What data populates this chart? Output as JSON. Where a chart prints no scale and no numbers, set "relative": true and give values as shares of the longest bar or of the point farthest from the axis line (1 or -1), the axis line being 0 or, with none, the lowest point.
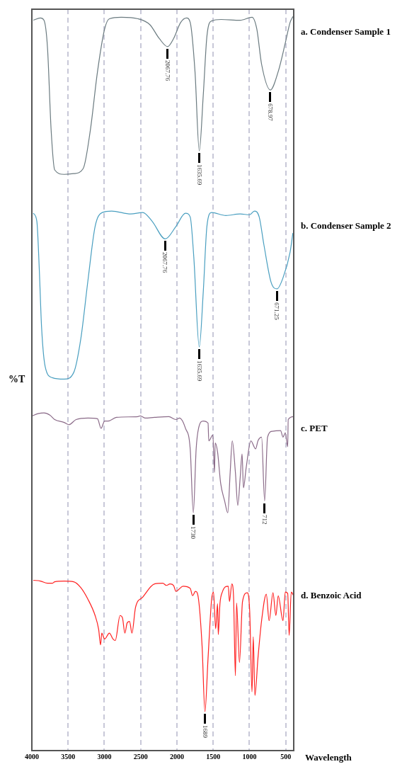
{
  "chart_data": {
    "type": "line",
    "relative": true,
    "xlabel": "Wavelength",
    "ylabel": "%T",
    "xlim": [
      4000,
      390
    ],
    "xticks": [
      4000,
      3500,
      3000,
      2500,
      2000,
      1500,
      1000,
      500
    ],
    "grid": "x",
    "marker": "none",
    "tick_labels": "x",
    "series": [
      {
        "name": "a. Condenser Sample 1",
        "color": "#6b7b80",
        "x": [
          3980,
          3882,
          3833,
          3784,
          3734,
          3685,
          3554,
          3423,
          3292,
          3194,
          3095,
          2997,
          2931,
          2767,
          2538,
          2374,
          2243,
          2128,
          2046,
          1948,
          1866,
          1817,
          1751,
          1692,
          1637,
          1587,
          1522,
          1391,
          1128,
          965,
          899,
          833,
          712,
          604,
          506,
          440,
          401
        ],
        "values": [
          0.995,
          0.998,
          0.995,
          0.957,
          0.845,
          0.791,
          0.785,
          0.786,
          0.793,
          0.845,
          0.925,
          0.983,
          0.997,
          0.999,
          0.997,
          0.989,
          0.97,
          0.959,
          0.97,
          0.992,
          0.998,
          0.992,
          0.925,
          0.817,
          0.893,
          0.973,
          0.994,
          0.996,
          0.995,
          0.999,
          0.983,
          0.935,
          0.9,
          0.925,
          0.964,
          0.992,
          1
        ]
      },
      {
        "name": "b. Condenser Sample 2",
        "color": "#4a9fc0",
        "x": [
          3980,
          3931,
          3898,
          3866,
          3816,
          3718,
          3554,
          3423,
          3325,
          3226,
          3128,
          3030,
          2899,
          2636,
          2472,
          2341,
          2161,
          2014,
          1882,
          1817,
          1768,
          1692,
          1637,
          1587,
          1522,
          1325,
          1128,
          997,
          932,
          866,
          801,
          702,
          620,
          538,
          440,
          402
        ],
        "values": [
          0.732,
          0.721,
          0.657,
          0.577,
          0.523,
          0.508,
          0.506,
          0.515,
          0.561,
          0.641,
          0.714,
          0.733,
          0.735,
          0.731,
          0.733,
          0.721,
          0.697,
          0.714,
          0.732,
          0.727,
          0.673,
          0.55,
          0.625,
          0.714,
          0.733,
          0.729,
          0.731,
          0.73,
          0.735,
          0.727,
          0.689,
          0.638,
          0.629,
          0.644,
          0.679,
          0.705
        ]
      },
      {
        "name": "c. PET",
        "color": "#8a6a88",
        "x": [
          3997,
          3915,
          3833,
          3751,
          3685,
          3554,
          3489,
          3390,
          3226,
          3095,
          3046,
          2997,
          2948,
          2833,
          2538,
          2505,
          2440,
          2309,
          2112,
          2014,
          1964,
          1882,
          1817,
          1774,
          1735,
          1702,
          1637,
          1571,
          1561,
          1505,
          1482,
          1473,
          1440,
          1397,
          1342,
          1299,
          1266,
          1237,
          1194,
          1161,
          1128,
          1102,
          1083,
          1046,
          981,
          915,
          883,
          833,
          791,
          751,
          686,
          571,
          538,
          506,
          473,
          466,
          391
        ],
        "values": [
          0.456,
          0.459,
          0.46,
          0.457,
          0.451,
          0.447,
          0.444,
          0.451,
          0.453,
          0.452,
          0.439,
          0.449,
          0.449,
          0.454,
          0.455,
          0.456,
          0.453,
          0.454,
          0.455,
          0.451,
          0.453,
          0.439,
          0.411,
          0.324,
          0.411,
          0.439,
          0.449,
          0.446,
          0.422,
          0.43,
          0.379,
          0.419,
          0.407,
          0.364,
          0.34,
          0.324,
          0.379,
          0.422,
          0.379,
          0.334,
          0.372,
          0.404,
          0.358,
          0.385,
          0.422,
          0.411,
          0.422,
          0.427,
          0.34,
          0.427,
          0.435,
          0.436,
          0.427,
          0.433,
          0.414,
          0.451,
          0.455
        ]
      },
      {
        "name": "d. Benzoic Acid",
        "color": "#ff2020",
        "x": [
          3980,
          3882,
          3784,
          3718,
          3685,
          3554,
          3423,
          3325,
          3226,
          3128,
          3079,
          3053,
          3036,
          2997,
          2931,
          2882,
          2850,
          2784,
          2751,
          2718,
          2686,
          2653,
          2620,
          2571,
          2472,
          2309,
          2194,
          2145,
          2096,
          2046,
          2014,
          1915,
          1817,
          1784,
          1745,
          1702,
          1653,
          1614,
          1571,
          1522,
          1496,
          1466,
          1440,
          1430,
          1407,
          1374,
          1292,
          1276,
          1243,
          1220,
          1194,
          1178,
          1138,
          1096,
          1030,
          997,
          965,
          948,
          925,
          883,
          833,
          768,
          729,
          676,
          636,
          604,
          538,
          506,
          473,
          453,
          424,
          391
        ],
        "values": [
          0.232,
          0.231,
          0.228,
          0.228,
          0.23,
          0.231,
          0.23,
          0.222,
          0.206,
          0.184,
          0.165,
          0.144,
          0.16,
          0.152,
          0.16,
          0.152,
          0.15,
          0.184,
          0.181,
          0.16,
          0.174,
          0.176,
          0.16,
          0.195,
          0.209,
          0.227,
          0.228,
          0.225,
          0.227,
          0.225,
          0.217,
          0.224,
          0.221,
          0.211,
          0.217,
          0.206,
          0.142,
          0.053,
          0.126,
          0.206,
          0.216,
          0.166,
          0.2,
          0.158,
          0.2,
          0.216,
          0.224,
          0.203,
          0.227,
          0.211,
          0.102,
          0.201,
          0.12,
          0.203,
          0.215,
          0.19,
          0.08,
          0.155,
          0.075,
          0.126,
          0.177,
          0.213,
          0.177,
          0.215,
          0.184,
          0.211,
          0.177,
          0.216,
          0.214,
          0.157,
          0.216,
          0.211
        ]
      }
    ],
    "annotations": [
      {
        "text": "2067.76",
        "x": 2128,
        "y": 0.959
      },
      {
        "text": "1635.69",
        "x": 1692,
        "y": 0.817
      },
      {
        "text": "678.97",
        "x": 712,
        "y": 0.9
      },
      {
        "text": "2067.76",
        "x": 2161,
        "y": 0.697
      },
      {
        "text": "1635.69",
        "x": 1692,
        "y": 0.55
      },
      {
        "text": "671.25",
        "x": 620,
        "y": 0.629
      },
      {
        "text": "1730",
        "x": 1774,
        "y": 0.324
      },
      {
        "text": "712",
        "x": 791,
        "y": 0.34
      },
      {
        "text": "1689",
        "x": 1614,
        "y": 0.053
      }
    ]
  }
}
